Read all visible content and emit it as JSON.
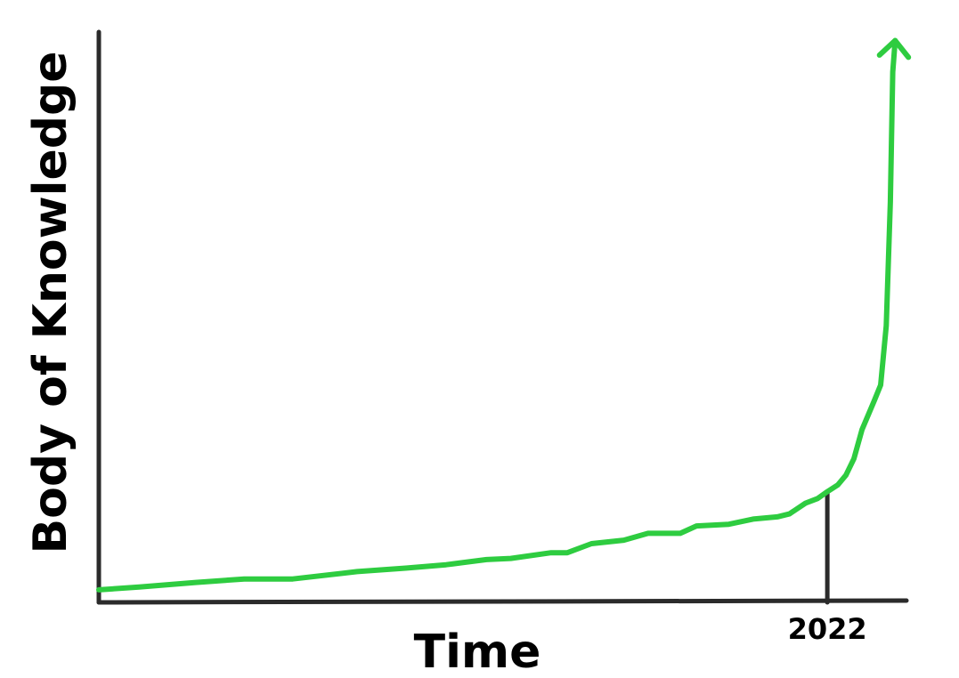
{
  "chart_data": {
    "type": "line",
    "title": "",
    "xlabel": "Time",
    "ylabel": "Body of Knowledge",
    "x_ticks": [
      "2022"
    ],
    "marker_x": 0.902,
    "grid": false,
    "legend": "none",
    "colors": {
      "line": "#2ecc40",
      "axis": "#2b2b2b",
      "text": "#000000"
    },
    "series": [
      {
        "arrow_end": true,
        "x": [
          0,
          0.05,
          0.12,
          0.18,
          0.24,
          0.32,
          0.38,
          0.43,
          0.48,
          0.51,
          0.56,
          0.58,
          0.61,
          0.65,
          0.68,
          0.72,
          0.74,
          0.78,
          0.81,
          0.84,
          0.855,
          0.875,
          0.89,
          0.902,
          0.915,
          0.925,
          0.935,
          0.945,
          0.96,
          0.968,
          0.975,
          0.98,
          0.983,
          0.986
        ],
        "y": [
          0.022,
          0.027,
          0.035,
          0.041,
          0.041,
          0.054,
          0.06,
          0.066,
          0.075,
          0.077,
          0.087,
          0.087,
          0.103,
          0.109,
          0.121,
          0.121,
          0.134,
          0.137,
          0.146,
          0.15,
          0.155,
          0.174,
          0.182,
          0.194,
          0.206,
          0.223,
          0.252,
          0.303,
          0.353,
          0.381,
          0.485,
          0.702,
          0.93,
          0.985
        ]
      }
    ]
  }
}
